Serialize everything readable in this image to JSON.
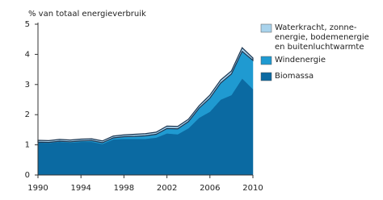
{
  "chart_data": {
    "type": "stacked-area",
    "title": "% van totaal energieverbruik",
    "x": [
      1990,
      1991,
      1992,
      1993,
      1994,
      1995,
      1996,
      1997,
      1998,
      1999,
      2000,
      2001,
      2002,
      2003,
      2004,
      2005,
      2006,
      2007,
      2008,
      2009,
      2010
    ],
    "series": [
      {
        "name": "Biomassa",
        "color": "#0b6aa2",
        "values": [
          1.08,
          1.06,
          1.1,
          1.07,
          1.1,
          1.1,
          1.03,
          1.18,
          1.2,
          1.2,
          1.2,
          1.24,
          1.38,
          1.35,
          1.55,
          1.9,
          2.1,
          2.5,
          2.65,
          3.2,
          2.85
        ]
      },
      {
        "name": "Windenergie",
        "color": "#1f9ad1",
        "values": [
          0.01,
          0.02,
          0.02,
          0.03,
          0.03,
          0.04,
          0.04,
          0.05,
          0.07,
          0.08,
          0.1,
          0.11,
          0.16,
          0.18,
          0.22,
          0.32,
          0.45,
          0.55,
          0.7,
          0.9,
          0.95
        ]
      },
      {
        "name": "Waterkracht, zonne-energie, bodemenergie en buitenluchtwarmte",
        "color": "#a9d3ec",
        "values": [
          0.06,
          0.06,
          0.06,
          0.06,
          0.06,
          0.06,
          0.06,
          0.06,
          0.06,
          0.07,
          0.07,
          0.07,
          0.08,
          0.08,
          0.08,
          0.08,
          0.1,
          0.1,
          0.1,
          0.12,
          0.08
        ]
      }
    ],
    "xlim": [
      1990,
      2010
    ],
    "xticks": [
      1990,
      1994,
      1998,
      2002,
      2006,
      2010
    ],
    "ylim": [
      0,
      5
    ],
    "yticks": [
      0,
      1,
      2,
      3,
      4,
      5
    ]
  }
}
